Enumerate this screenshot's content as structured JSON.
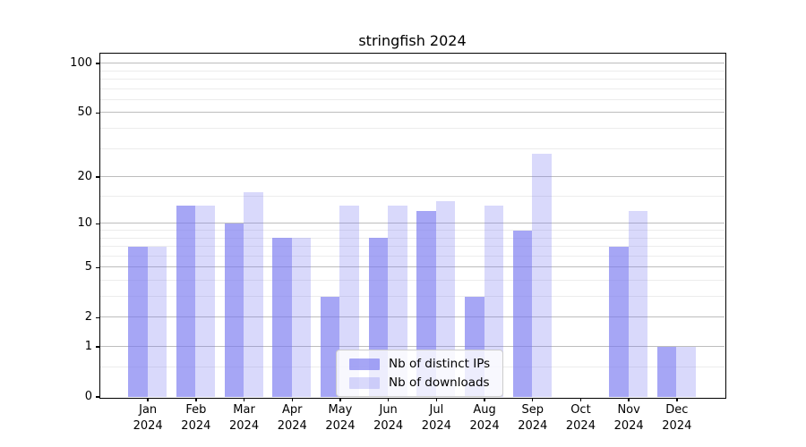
{
  "chart_data": {
    "type": "bar",
    "title": "stringfish 2024",
    "categories": [
      "Jan",
      "Feb",
      "Mar",
      "Apr",
      "May",
      "Jun",
      "Jul",
      "Aug",
      "Sep",
      "Oct",
      "Nov",
      "Dec"
    ],
    "category_year": "2024",
    "series": [
      {
        "name": "Nb of distinct IPs",
        "color": "rgba(120,120,240,0.66)",
        "values": [
          7,
          13,
          10,
          8,
          3,
          8,
          12,
          3,
          9,
          0,
          7,
          1
        ]
      },
      {
        "name": "Nb of downloads",
        "color": "rgba(120,120,240,0.28)",
        "values": [
          7,
          13,
          16,
          8,
          13,
          13,
          14,
          13,
          28,
          0,
          12,
          1
        ]
      }
    ],
    "yscale": "log1p",
    "ylim": [
      0,
      115
    ],
    "yticks": [
      0,
      1,
      2,
      5,
      10,
      20,
      50,
      100
    ],
    "minor_gridlines": [
      0.5,
      3,
      4,
      6,
      7,
      8,
      9,
      15,
      30,
      40,
      60,
      70,
      80,
      90
    ],
    "grid": true,
    "legend_position": "lower center inside",
    "colors": {
      "major_grid": "#bdbdbd",
      "minor_grid": "#ececec",
      "spine": "#000000",
      "background": "#ffffff"
    }
  }
}
